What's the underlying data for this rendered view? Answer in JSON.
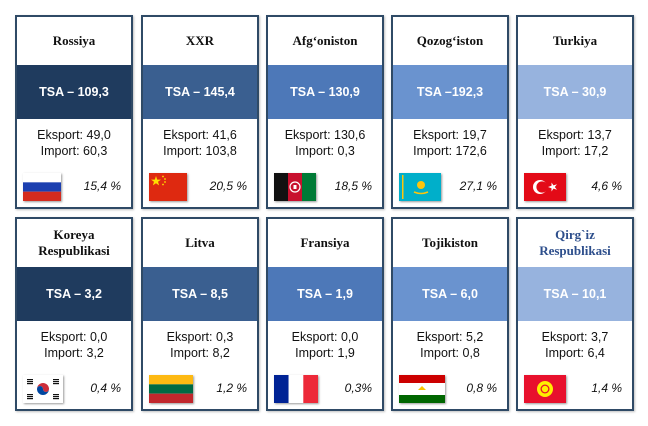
{
  "cards": [
    {
      "name": "Rossiya",
      "tsa": "TSA – 109,3",
      "eksport": "Eksport: 49,0",
      "import": "Import:  60,3",
      "percent": "15,4 %",
      "band_color": "#1f3b5e",
      "flag_icon": "russia-flag-icon"
    },
    {
      "name": "XXR",
      "tsa": "TSA – 145,4",
      "eksport": "Eksport: 41,6",
      "import": "Import:  103,8",
      "percent": "20,5 %",
      "band_color": "#3a5f90",
      "flag_icon": "china-flag-icon"
    },
    {
      "name": "Afg‘oniston",
      "tsa": "TSA – 130,9",
      "eksport": "Eksport: 130,6",
      "import": "Import:  0,3",
      "percent": "18,5 %",
      "band_color": "#4d78b8",
      "flag_icon": "afghanistan-flag-icon"
    },
    {
      "name": "Qozog‘iston",
      "tsa": "TSA –192,3",
      "eksport": "Eksport: 19,7",
      "import": "Import:  172,6",
      "percent": "27,1 %",
      "band_color": "#6a93cf",
      "flag_icon": "kazakhstan-flag-icon"
    },
    {
      "name": "Turkiya",
      "tsa": "TSA – 30,9",
      "eksport": "Eksport: 13,7",
      "import": "Import:  17,2",
      "percent": "4,6 %",
      "band_color": "#97b3de",
      "flag_icon": "turkey-flag-icon"
    },
    {
      "name": "Koreya Respublikasi",
      "tsa": "TSA – 3,2",
      "eksport": "Eksport: 0,0",
      "import": "Import: 3,2",
      "percent": "0,4 %",
      "band_color": "#1f3b5e",
      "flag_icon": "south-korea-flag-icon"
    },
    {
      "name": "Litva",
      "tsa": "TSA – 8,5",
      "eksport": "Eksport: 0,3",
      "import": "Import: 8,2",
      "percent": "1,2 %",
      "band_color": "#3a5f90",
      "flag_icon": "lithuania-flag-icon"
    },
    {
      "name": "Fransiya",
      "tsa": "TSA – 1,9",
      "eksport": "Eksport: 0,0",
      "import": "Import: 1,9",
      "percent": "0,3%",
      "band_color": "#4d78b8",
      "flag_icon": "france-flag-icon"
    },
    {
      "name": "Tojikiston",
      "tsa": "TSA – 6,0",
      "eksport": "Eksport: 5,2",
      "import": "Import: 0,8",
      "percent": "0,8 %",
      "band_color": "#6a93cf",
      "flag_icon": "tajikistan-flag-icon"
    },
    {
      "name": "Qirg`iz Respublikasi",
      "tsa": "TSA – 10,1",
      "eksport": "Eksport: 3,7",
      "import": "Import: 6,4",
      "percent": "1,4 %",
      "band_color": "#97b3de",
      "flag_icon": "kyrgyzstan-flag-icon",
      "title_color": "#2e4f8c"
    }
  ]
}
